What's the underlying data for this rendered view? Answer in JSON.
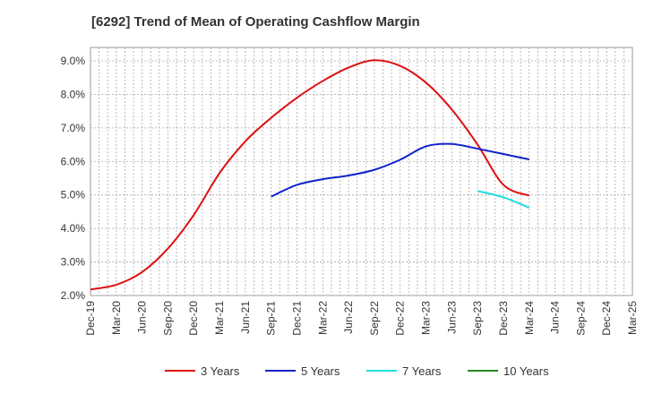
{
  "chart_data": {
    "type": "line",
    "title": "[6292]  Trend of Mean of Operating Cashflow Margin",
    "xlabel": "",
    "ylabel": "",
    "x_ticks": [
      "Dec-19",
      "Mar-20",
      "Jun-20",
      "Sep-20",
      "Dec-20",
      "Mar-21",
      "Jun-21",
      "Sep-21",
      "Dec-21",
      "Mar-22",
      "Jun-22",
      "Sep-22",
      "Dec-22",
      "Mar-23",
      "Jun-23",
      "Sep-23",
      "Dec-23",
      "Mar-24",
      "Jun-24",
      "Sep-24",
      "Dec-24",
      "Mar-25"
    ],
    "y_ticks": [
      "2.0%",
      "3.0%",
      "4.0%",
      "5.0%",
      "6.0%",
      "7.0%",
      "8.0%",
      "9.0%"
    ],
    "y_tick_values": [
      2.0,
      3.0,
      4.0,
      5.0,
      6.0,
      7.0,
      8.0,
      9.0
    ],
    "ylim": [
      2.0,
      9.4
    ],
    "grid": true,
    "legend_position": "bottom",
    "series": [
      {
        "name": "3 Years",
        "color": "#dd1111",
        "x": [
          "Dec-19",
          "Mar-20",
          "Jun-20",
          "Sep-20",
          "Dec-20",
          "Mar-21",
          "Jun-21",
          "Sep-21",
          "Dec-21",
          "Mar-22",
          "Jun-22",
          "Sep-22",
          "Dec-22",
          "Mar-23",
          "Jun-23",
          "Sep-23",
          "Dec-23",
          "Mar-24"
        ],
        "values": [
          2.18,
          2.32,
          2.7,
          3.4,
          4.4,
          5.65,
          6.6,
          7.3,
          7.9,
          8.4,
          8.8,
          9.02,
          8.85,
          8.35,
          7.55,
          6.5,
          5.3,
          4.98
        ]
      },
      {
        "name": "5 Years",
        "color": "#1122cc",
        "x": [
          "Sep-21",
          "Dec-21",
          "Mar-22",
          "Jun-22",
          "Sep-22",
          "Dec-22",
          "Mar-23",
          "Jun-23",
          "Sep-23",
          "Dec-23",
          "Mar-24"
        ],
        "values": [
          4.95,
          5.3,
          5.47,
          5.58,
          5.75,
          6.05,
          6.45,
          6.52,
          6.38,
          6.22,
          6.06
        ]
      },
      {
        "name": "7 Years",
        "color": "#22dddd",
        "x": [
          "Sep-23",
          "Dec-23",
          "Mar-24"
        ],
        "values": [
          5.12,
          4.93,
          4.62
        ]
      },
      {
        "name": "10 Years",
        "color": "#228822",
        "x": [],
        "values": []
      }
    ]
  }
}
